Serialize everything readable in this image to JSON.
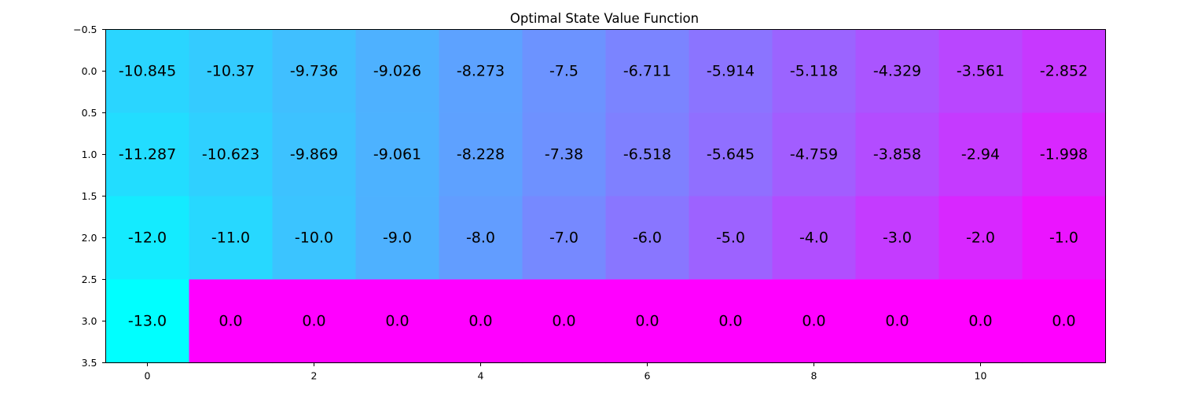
{
  "chart_data": {
    "type": "heatmap",
    "title": "Optimal State Value Function",
    "xlabel": "",
    "ylabel": "",
    "colormap": "cool",
    "colormap_start": "#00ffff",
    "colormap_end": "#ff00ff",
    "grid": false,
    "rows": 4,
    "cols": 12,
    "xlim": [
      -0.5,
      11.5
    ],
    "ylim": [
      3.5,
      -0.5
    ],
    "x_ticks": [
      0,
      2,
      4,
      6,
      8,
      10
    ],
    "x_tick_labels": [
      "0",
      "2",
      "4",
      "6",
      "8",
      "10"
    ],
    "y_ticks": [
      -0.5,
      0.0,
      0.5,
      1.0,
      1.5,
      2.0,
      2.5,
      3.0,
      3.5
    ],
    "y_tick_labels": [
      "−0.5",
      "0.0",
      "0.5",
      "1.0",
      "1.5",
      "2.0",
      "2.5",
      "3.0",
      "3.5"
    ],
    "values": [
      [
        -10.845,
        -10.37,
        -9.736,
        -9.026,
        -8.273,
        -7.5,
        -6.711,
        -5.914,
        -5.118,
        -4.329,
        -3.561,
        -2.852
      ],
      [
        -11.287,
        -10.623,
        -9.869,
        -9.061,
        -8.228,
        -7.38,
        -6.518,
        -5.645,
        -4.759,
        -3.858,
        -2.94,
        -1.998
      ],
      [
        -12.0,
        -11.0,
        -10.0,
        -9.0,
        -8.0,
        -7.0,
        -6.0,
        -5.0,
        -4.0,
        -3.0,
        -2.0,
        -1.0
      ],
      [
        -13.0,
        0.0,
        0.0,
        0.0,
        0.0,
        0.0,
        0.0,
        0.0,
        0.0,
        0.0,
        0.0,
        0.0
      ]
    ],
    "cell_labels": [
      [
        "-10.845",
        "-10.37",
        "-9.736",
        "-9.026",
        "-8.273",
        "-7.5",
        "-6.711",
        "-5.914",
        "-5.118",
        "-4.329",
        "-3.561",
        "-2.852"
      ],
      [
        "-11.287",
        "-10.623",
        "-9.869",
        "-9.061",
        "-8.228",
        "-7.38",
        "-6.518",
        "-5.645",
        "-4.759",
        "-3.858",
        "-2.94",
        "-1.998"
      ],
      [
        "-12.0",
        "-11.0",
        "-10.0",
        "-9.0",
        "-8.0",
        "-7.0",
        "-6.0",
        "-5.0",
        "-4.0",
        "-3.0",
        "-2.0",
        "-1.0"
      ],
      [
        "-13.0",
        "0.0",
        "0.0",
        "0.0",
        "0.0",
        "0.0",
        "0.0",
        "0.0",
        "0.0",
        "0.0",
        "0.0",
        "0.0"
      ]
    ]
  }
}
